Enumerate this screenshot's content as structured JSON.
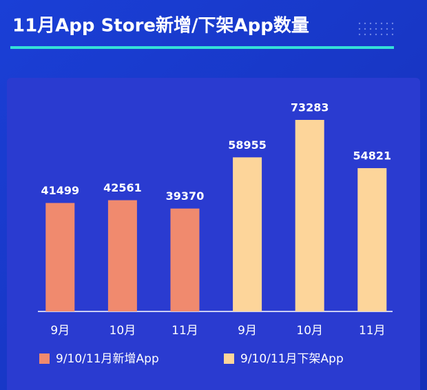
{
  "chart_data": {
    "type": "bar",
    "title": "11月App Store新增/下架App数量",
    "categories": [
      "9月",
      "10月",
      "11月",
      "9月",
      "10月",
      "11月"
    ],
    "series": [
      {
        "name": "9/10/11月新增App",
        "color": "#f08a6e",
        "values": [
          41499,
          42561,
          39370,
          null,
          null,
          null
        ]
      },
      {
        "name": "9/10/11月下架App",
        "color": "#fdd59a",
        "values": [
          null,
          null,
          null,
          58955,
          73283,
          54821
        ]
      }
    ]
  }
}
